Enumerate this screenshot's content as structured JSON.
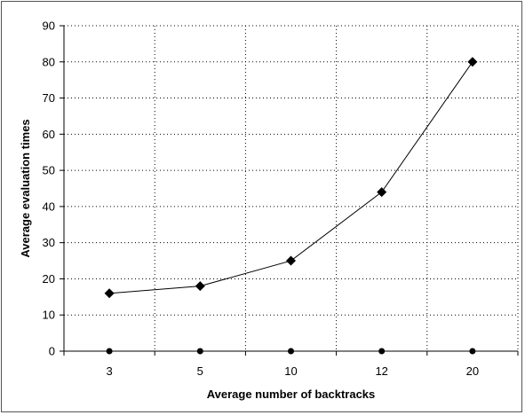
{
  "chart_data": {
    "type": "line",
    "categories": [
      "3",
      "5",
      "10",
      "12",
      "20"
    ],
    "series": [
      {
        "marker": "diamond",
        "color": "#000000",
        "values": [
          16,
          18,
          25,
          44,
          80
        ]
      },
      {
        "marker": "circle",
        "color": "#000000",
        "values": [
          0,
          0,
          0,
          0,
          0
        ]
      }
    ],
    "title": "",
    "xlabel": "Average number of backtracks",
    "ylabel": "Average evaluation times",
    "ylim": [
      0,
      90
    ],
    "yticks": [
      0,
      10,
      20,
      30,
      40,
      50,
      60,
      70,
      80,
      90
    ],
    "grid": "dotted, both axes",
    "legend": "none"
  }
}
